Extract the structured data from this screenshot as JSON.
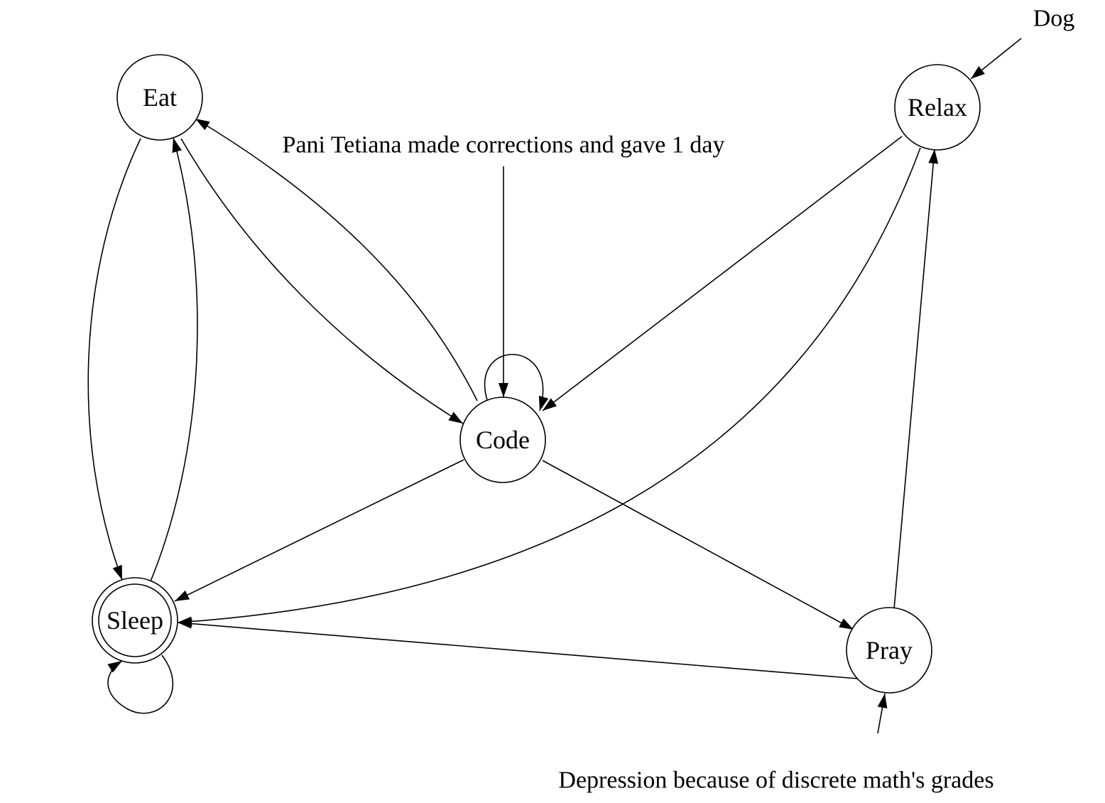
{
  "diagram": {
    "nodes": {
      "eat": {
        "label": "Eat"
      },
      "relax": {
        "label": "Relax"
      },
      "code": {
        "label": "Code"
      },
      "sleep": {
        "label": "Sleep",
        "accepting": true
      },
      "pray": {
        "label": "Pray"
      }
    },
    "annotations": {
      "dog": "Dog",
      "pani": "Pani Tetiana made corrections and gave 1 day",
      "depression": "Depression because of discrete math's grades"
    },
    "edges": [
      {
        "from": "eat",
        "to": "sleep"
      },
      {
        "from": "sleep",
        "to": "eat"
      },
      {
        "from": "eat",
        "to": "code"
      },
      {
        "from": "code",
        "to": "eat"
      },
      {
        "from": "code",
        "to": "code"
      },
      {
        "from": "relax",
        "to": "code"
      },
      {
        "from": "relax",
        "to": "sleep"
      },
      {
        "from": "code",
        "to": "sleep"
      },
      {
        "from": "code",
        "to": "pray"
      },
      {
        "from": "pray",
        "to": "sleep"
      },
      {
        "from": "pray",
        "to": "relax"
      },
      {
        "from": "sleep",
        "to": "sleep"
      }
    ]
  }
}
